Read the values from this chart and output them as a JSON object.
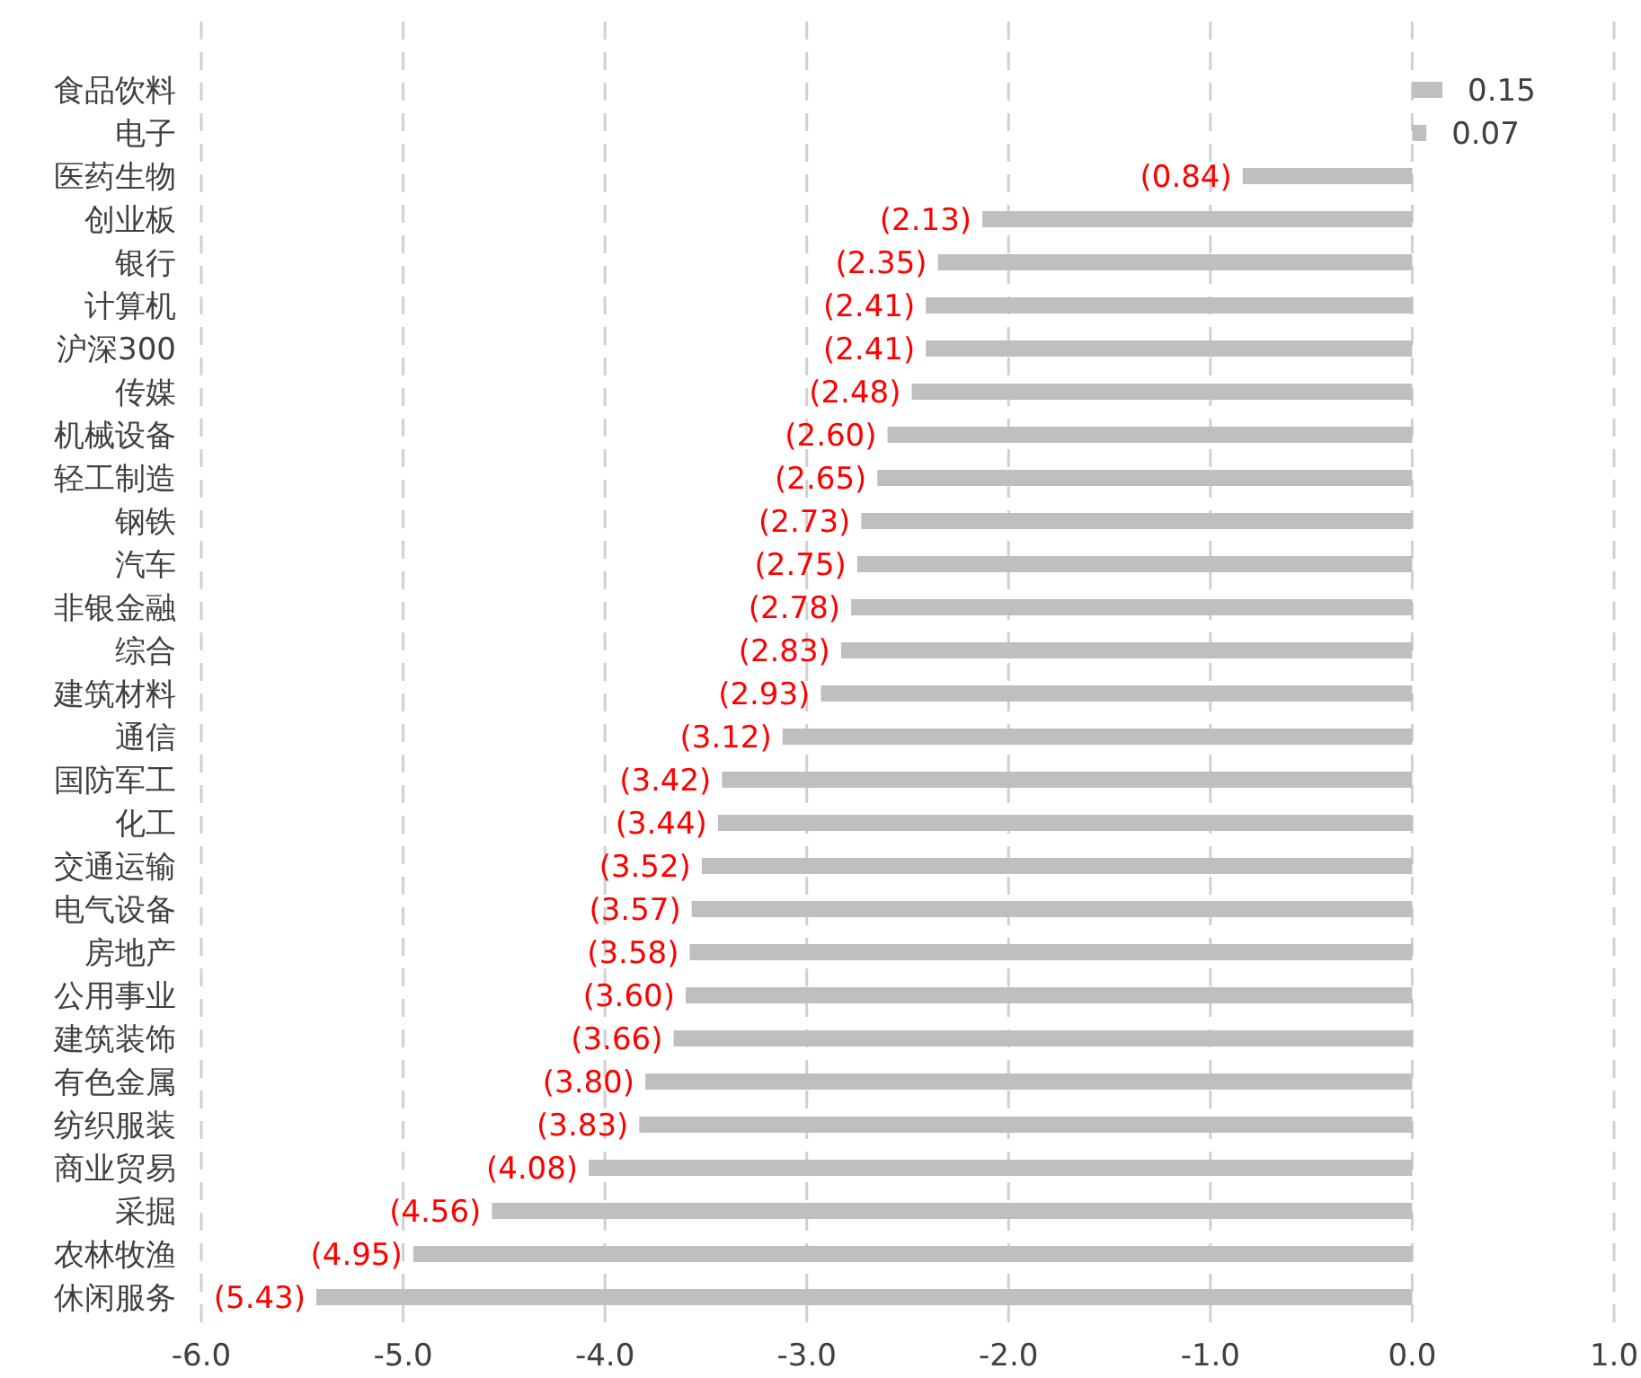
{
  "chart_data": {
    "type": "bar",
    "orientation": "horizontal",
    "categories": [
      "食品饮料",
      "电子",
      "医药生物",
      "创业板",
      "银行",
      "计算机",
      "沪深300",
      "传媒",
      "机械设备",
      "轻工制造",
      "钢铁",
      "汽车",
      "非银金融",
      "综合",
      "建筑材料",
      "通信",
      "国防军工",
      "化工",
      "交通运输",
      "电气设备",
      "房地产",
      "公用事业",
      "建筑装饰",
      "有色金属",
      "纺织服装",
      "商业贸易",
      "采掘",
      "农林牧渔",
      "休闲服务"
    ],
    "values": [
      0.15,
      0.07,
      -0.84,
      -2.13,
      -2.35,
      -2.41,
      -2.41,
      -2.48,
      -2.6,
      -2.65,
      -2.73,
      -2.75,
      -2.78,
      -2.83,
      -2.93,
      -3.12,
      -3.42,
      -3.44,
      -3.52,
      -3.57,
      -3.58,
      -3.6,
      -3.66,
      -3.8,
      -3.83,
      -4.08,
      -4.56,
      -4.95,
      -5.43
    ],
    "value_labels": [
      "0.15",
      "0.07",
      "(0.84)",
      "(2.13)",
      "(2.35)",
      "(2.41)",
      "(2.41)",
      "(2.48)",
      "(2.60)",
      "(2.65)",
      "(2.73)",
      "(2.75)",
      "(2.78)",
      "(2.83)",
      "(2.93)",
      "(3.12)",
      "(3.42)",
      "(3.44)",
      "(3.52)",
      "(3.57)",
      "(3.58)",
      "(3.60)",
      "(3.66)",
      "(3.80)",
      "(3.83)",
      "(4.08)",
      "(4.56)",
      "(4.95)",
      "(5.43)"
    ],
    "color": "#bfbfbf",
    "xlim": [
      -6,
      1
    ],
    "xticks": [
      {
        "value": -6,
        "label": "-6.0"
      },
      {
        "value": -5,
        "label": "-5.0"
      },
      {
        "value": -4,
        "label": "-4.0"
      },
      {
        "value": -3,
        "label": "-3.0"
      },
      {
        "value": -2,
        "label": "-2.0"
      },
      {
        "value": -1,
        "label": "-1.0"
      },
      {
        "value": 0,
        "label": "0.0"
      },
      {
        "value": 1,
        "label": "1.0"
      }
    ],
    "grid": "x"
  }
}
